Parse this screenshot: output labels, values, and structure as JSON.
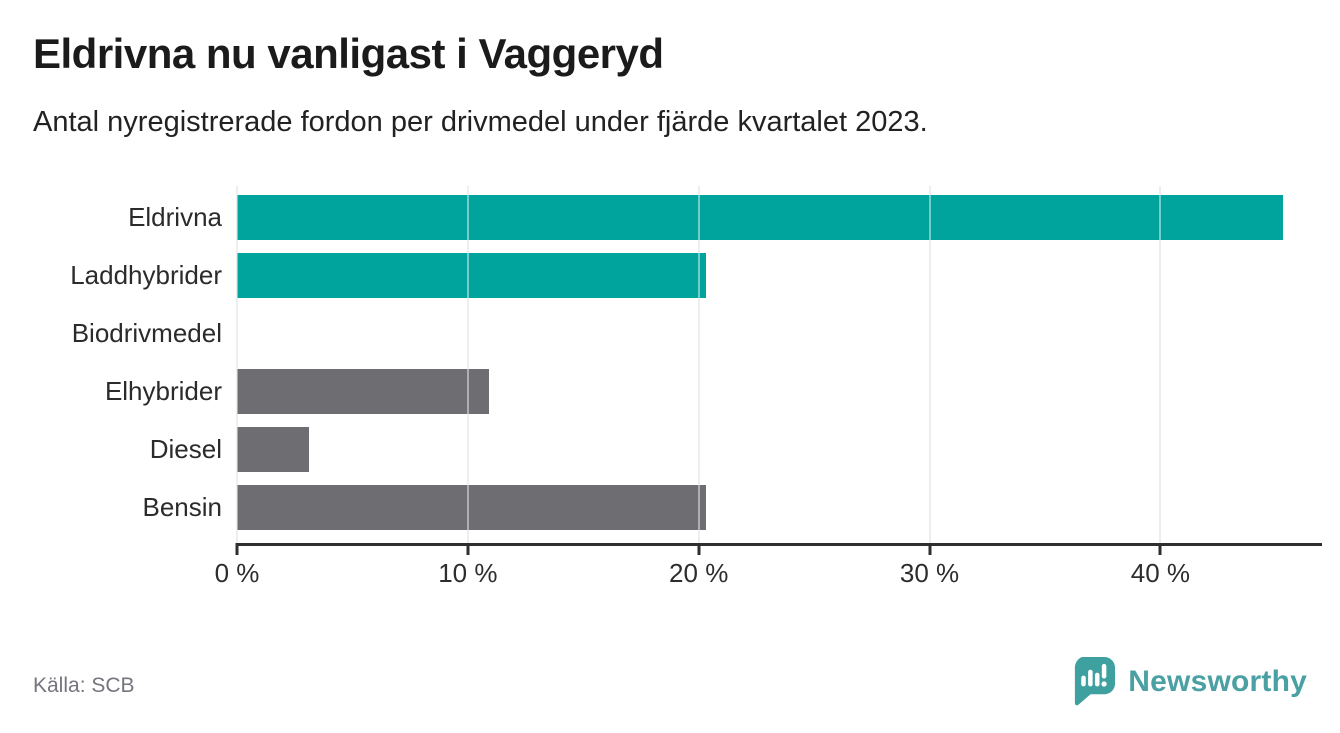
{
  "page": {
    "footer": {
      "source": "Källa: SCB",
      "brand": "Newsworthy"
    }
  },
  "chart_data": {
    "type": "bar",
    "orientation": "horizontal",
    "title": "Eldrivna nu vanligast i Vaggeryd",
    "subtitle": "Antal nyregistrerade fordon per drivmedel under fjärde kvartalet 2023.",
    "categories": [
      "Eldrivna",
      "Laddhybrider",
      "Biodrivmedel",
      "Elhybrider",
      "Diesel",
      "Bensin"
    ],
    "values": [
      45.3,
      20.3,
      0,
      10.9,
      3.1,
      20.3
    ],
    "unit": "%",
    "xlabel": "",
    "ylabel": "",
    "xlim": [
      0,
      47
    ],
    "xticks": [
      0,
      10,
      20,
      30,
      40
    ],
    "xtick_labels": [
      "0 %",
      "10 %",
      "20 %",
      "30 %",
      "40 %"
    ],
    "grid": true,
    "legend": false,
    "bar_colors": [
      "#00a49c",
      "#00a49c",
      "#6d6d72",
      "#6d6d72",
      "#6d6d72",
      "#6d6d72"
    ],
    "colors": {
      "highlight": "#00a49c",
      "default_bar": "#6d6d72",
      "axis": "#2f2f2f",
      "gridline": "#e0e0e0",
      "brand_teal": "#4aa0a2",
      "logo_teal": "#3fa0a0"
    }
  }
}
